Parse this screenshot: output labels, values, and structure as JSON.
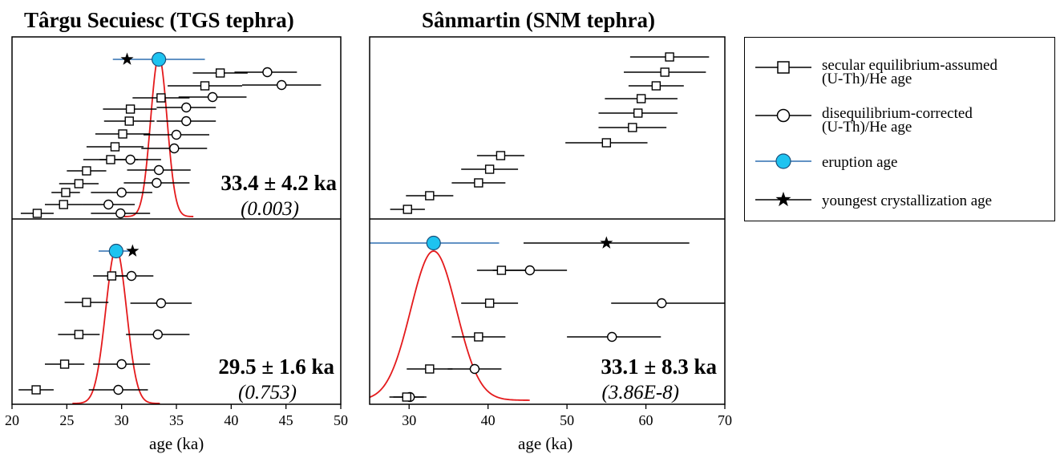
{
  "titles": {
    "left": "Târgu Secuiesc (TGS tephra)",
    "right": "Sânmartin (SNM tephra)"
  },
  "colors": {
    "eruption": "#1EC3F0",
    "eruption_line": "#2F6FB0",
    "pdf": "#E41A1C",
    "ink": "#000000"
  },
  "legend": {
    "items": [
      {
        "symbol": "square",
        "label_line1": "secular equilibrium-assumed",
        "label_line2": "(U-Th)/He age"
      },
      {
        "symbol": "circle",
        "label_line1": "disequilibrium-corrected",
        "label_line2": "(U-Th)/He age"
      },
      {
        "symbol": "eruption",
        "label_line1": "eruption age",
        "label_line2": ""
      },
      {
        "symbol": "star",
        "label_line1": "youngest crystallization age",
        "label_line2": ""
      }
    ]
  },
  "chart_data": [
    {
      "id": "tgs-top",
      "type": "scatter",
      "xlim": [
        20,
        50
      ],
      "annotation": "33.4 ± 4.2 ka",
      "annotation_sub": "(0.003)",
      "eruption_age": {
        "value": 33.4,
        "lo": 29.2,
        "hi": 37.6
      },
      "youngest": {
        "value": 30.5
      },
      "pdf": {
        "mu": 33.4,
        "sigma": 0.75
      },
      "rows": [
        {
          "sq": [
            39.0,
            36.5,
            41.5
          ],
          "ci": [
            43.3,
            40.3,
            46.0
          ]
        },
        {
          "sq": [
            37.6,
            34.2,
            41.0
          ],
          "ci": [
            44.6,
            41.0,
            48.2
          ]
        },
        {
          "sq": [
            33.6,
            31.0,
            36.2
          ],
          "ci": [
            38.3,
            35.2,
            41.4
          ]
        },
        {
          "sq": [
            30.8,
            28.3,
            33.2
          ],
          "ci": [
            35.9,
            33.2,
            38.6
          ]
        },
        {
          "sq": [
            30.7,
            28.4,
            33.0
          ],
          "ci": [
            35.9,
            33.2,
            38.6
          ]
        },
        {
          "sq": [
            30.1,
            27.6,
            32.6
          ],
          "ci": [
            35.0,
            32.0,
            38.0
          ]
        },
        {
          "sq": [
            29.4,
            26.8,
            32.0
          ],
          "ci": [
            34.8,
            31.8,
            37.8
          ]
        },
        {
          "sq": [
            29.0,
            26.5,
            31.5
          ],
          "ci": [
            30.8,
            28.0,
            33.6
          ]
        },
        {
          "sq": [
            26.8,
            25.0,
            28.6
          ],
          "ci": [
            33.4,
            30.5,
            36.3
          ]
        },
        {
          "sq": [
            26.1,
            24.3,
            27.9
          ],
          "ci": [
            33.2,
            30.2,
            36.2
          ]
        },
        {
          "sq": [
            24.9,
            23.6,
            26.2
          ],
          "ci": [
            30.0,
            27.2,
            32.8
          ]
        },
        {
          "sq": [
            24.7,
            23.0,
            26.4
          ],
          "ci": [
            28.8,
            26.4,
            31.2
          ]
        },
        {
          "sq": [
            22.3,
            20.8,
            23.8
          ],
          "ci": [
            29.9,
            27.2,
            32.6
          ]
        }
      ]
    },
    {
      "id": "tgs-bottom",
      "type": "scatter",
      "xlim": [
        20,
        50
      ],
      "xlabel": "age (ka)",
      "xticks": [
        20,
        25,
        30,
        35,
        40,
        45,
        50
      ],
      "annotation": "29.5 ± 1.6 ka",
      "annotation_sub": "(0.753)",
      "eruption_age": {
        "value": 29.5,
        "lo": 27.9,
        "hi": 31.1
      },
      "youngest": {
        "value": 31.0
      },
      "pdf": {
        "mu": 29.5,
        "sigma": 0.95
      },
      "rows": [
        {
          "sq": [
            29.1,
            27.4,
            30.8
          ],
          "ci": [
            30.9,
            28.9,
            32.9
          ]
        },
        {
          "sq": [
            26.8,
            24.8,
            28.8
          ],
          "ci": [
            33.6,
            30.8,
            36.4
          ]
        },
        {
          "sq": [
            26.1,
            24.2,
            28.0
          ],
          "ci": [
            33.3,
            30.4,
            36.2
          ]
        },
        {
          "sq": [
            24.8,
            23.0,
            26.6
          ],
          "ci": [
            30.0,
            27.4,
            32.6
          ]
        },
        {
          "sq": [
            22.2,
            20.6,
            23.8
          ],
          "ci": [
            29.7,
            27.0,
            32.4
          ]
        }
      ]
    },
    {
      "id": "snm-top",
      "type": "scatter",
      "xlim": [
        25,
        70
      ],
      "rows": [
        {
          "sq": [
            63.0,
            58.0,
            68.0
          ]
        },
        {
          "sq": [
            62.4,
            57.2,
            67.6
          ]
        },
        {
          "sq": [
            61.3,
            57.8,
            64.8
          ]
        },
        {
          "sq": [
            59.4,
            54.8,
            64.0
          ]
        },
        {
          "sq": [
            59.0,
            54.0,
            64.0
          ]
        },
        {
          "sq": [
            58.3,
            54.0,
            62.6
          ]
        },
        {
          "sq": [
            55.0,
            49.8,
            60.2
          ]
        },
        {
          "sq": [
            41.6,
            38.6,
            44.6
          ]
        },
        {
          "sq": [
            40.2,
            36.6,
            43.8
          ]
        },
        {
          "sq": [
            38.8,
            35.4,
            42.2
          ]
        },
        {
          "sq": [
            32.6,
            29.6,
            35.6
          ]
        },
        {
          "sq": [
            29.8,
            27.6,
            32.0
          ]
        }
      ]
    },
    {
      "id": "snm-bottom",
      "type": "scatter",
      "xlim": [
        25,
        70
      ],
      "xlabel": "age (ka)",
      "xticks": [
        30,
        40,
        50,
        60,
        70
      ],
      "annotation": "33.1 ± 8.3 ka",
      "annotation_sub": "(3.86E-8)",
      "eruption_age": {
        "value": 33.1,
        "lo": 24.8,
        "hi": 41.4
      },
      "youngest": {
        "value": 55.0,
        "lo": 44.5,
        "hi": 65.5
      },
      "pdf": {
        "mu": 33.1,
        "sigma": 2.9
      },
      "rows": [
        {
          "sq": [
            41.7,
            38.6,
            44.8
          ],
          "ci": [
            45.3,
            40.6,
            50.0
          ]
        },
        {
          "sq": [
            40.2,
            36.6,
            43.8
          ],
          "ci": [
            62.0,
            55.6,
            70.0
          ]
        },
        {
          "sq": [
            38.8,
            35.4,
            42.2
          ],
          "ci": [
            55.7,
            50.0,
            61.9
          ]
        },
        {
          "sq": [
            32.6,
            29.7,
            35.5
          ],
          "ci": [
            38.3,
            34.9,
            41.7
          ]
        },
        {
          "sq": [
            29.7,
            27.5,
            31.9
          ],
          "ci": [
            30.1,
            28.0,
            32.2
          ]
        }
      ]
    }
  ]
}
